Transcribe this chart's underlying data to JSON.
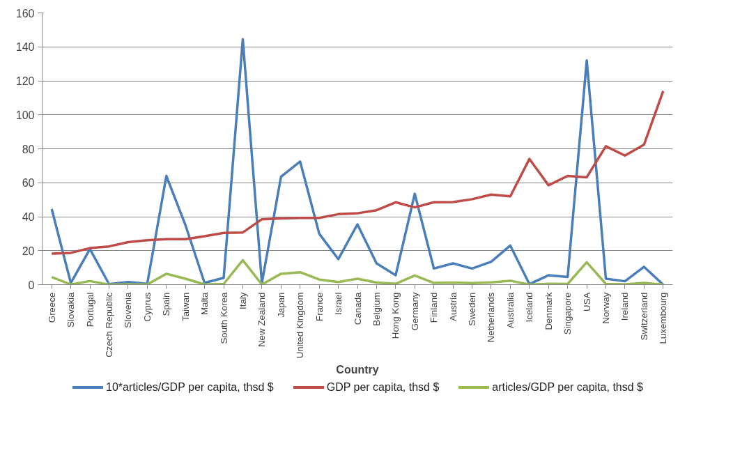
{
  "chart_data": {
    "type": "line",
    "xlabel": "Country",
    "categories": [
      "Greece",
      "Slovakia",
      "Portugal",
      "Czech Republic",
      "Slovenia",
      "Cyprus",
      "Spain",
      "Taiwan",
      "Malta",
      "South Korea",
      "Italy",
      "New Zealand",
      "Japan",
      "United Kingdom",
      "France",
      "Israel",
      "Canada",
      "Belgium",
      "Hong Kong",
      "Germany",
      "Finland",
      "Austria",
      "Sweden",
      "Netherlands",
      "Australia",
      "Iceland",
      "Denmark",
      "Singapore",
      "USA",
      "Norway",
      "Ireland",
      "Switzerland",
      "Luxembourg"
    ],
    "series": [
      {
        "name": "10*articles/GDP per capita, thsd $",
        "color": "#4a7ebb",
        "values": [
          44.5,
          1,
          21,
          0.3,
          1.5,
          0.5,
          64,
          35,
          1,
          4,
          144.5,
          1,
          63.5,
          72.5,
          30,
          15,
          35.5,
          12.5,
          5.5,
          53.5,
          9.5,
          12.5,
          9.5,
          13.5,
          23,
          0.3,
          5.5,
          4.5,
          132,
          3.5,
          2,
          10.5,
          0
        ]
      },
      {
        "name": "GDP per capita, thsd $",
        "color": "#be4b48",
        "values": [
          18.3,
          18.7,
          21.5,
          22.5,
          25,
          26.2,
          26.8,
          26.8,
          28.5,
          30.5,
          30.7,
          38.5,
          39,
          39.3,
          39.3,
          41.5,
          42,
          43.8,
          48.5,
          45.5,
          48.5,
          48.6,
          50.3,
          53,
          52,
          74,
          58.5,
          64,
          63.2,
          81.5,
          76,
          82.5,
          114
        ]
      },
      {
        "name": "articles/GDP per capita, thsd $",
        "color": "#98b954",
        "values": [
          4.5,
          0.1,
          2.1,
          0,
          0.2,
          0.1,
          6.4,
          3.5,
          0.1,
          0.4,
          14.4,
          0.1,
          6.4,
          7.3,
          3,
          1.5,
          3.5,
          1.2,
          0.5,
          5.4,
          1,
          1.2,
          0.9,
          1.3,
          2.3,
          0,
          0.5,
          0.4,
          13.2,
          0.4,
          0.2,
          1,
          0
        ]
      }
    ],
    "ylim": [
      0,
      160
    ],
    "yticks": [
      0,
      20,
      40,
      60,
      80,
      100,
      120,
      140,
      160
    ],
    "grid": "y",
    "legend": "bottom",
    "marker": "none",
    "line_style": "solid"
  }
}
